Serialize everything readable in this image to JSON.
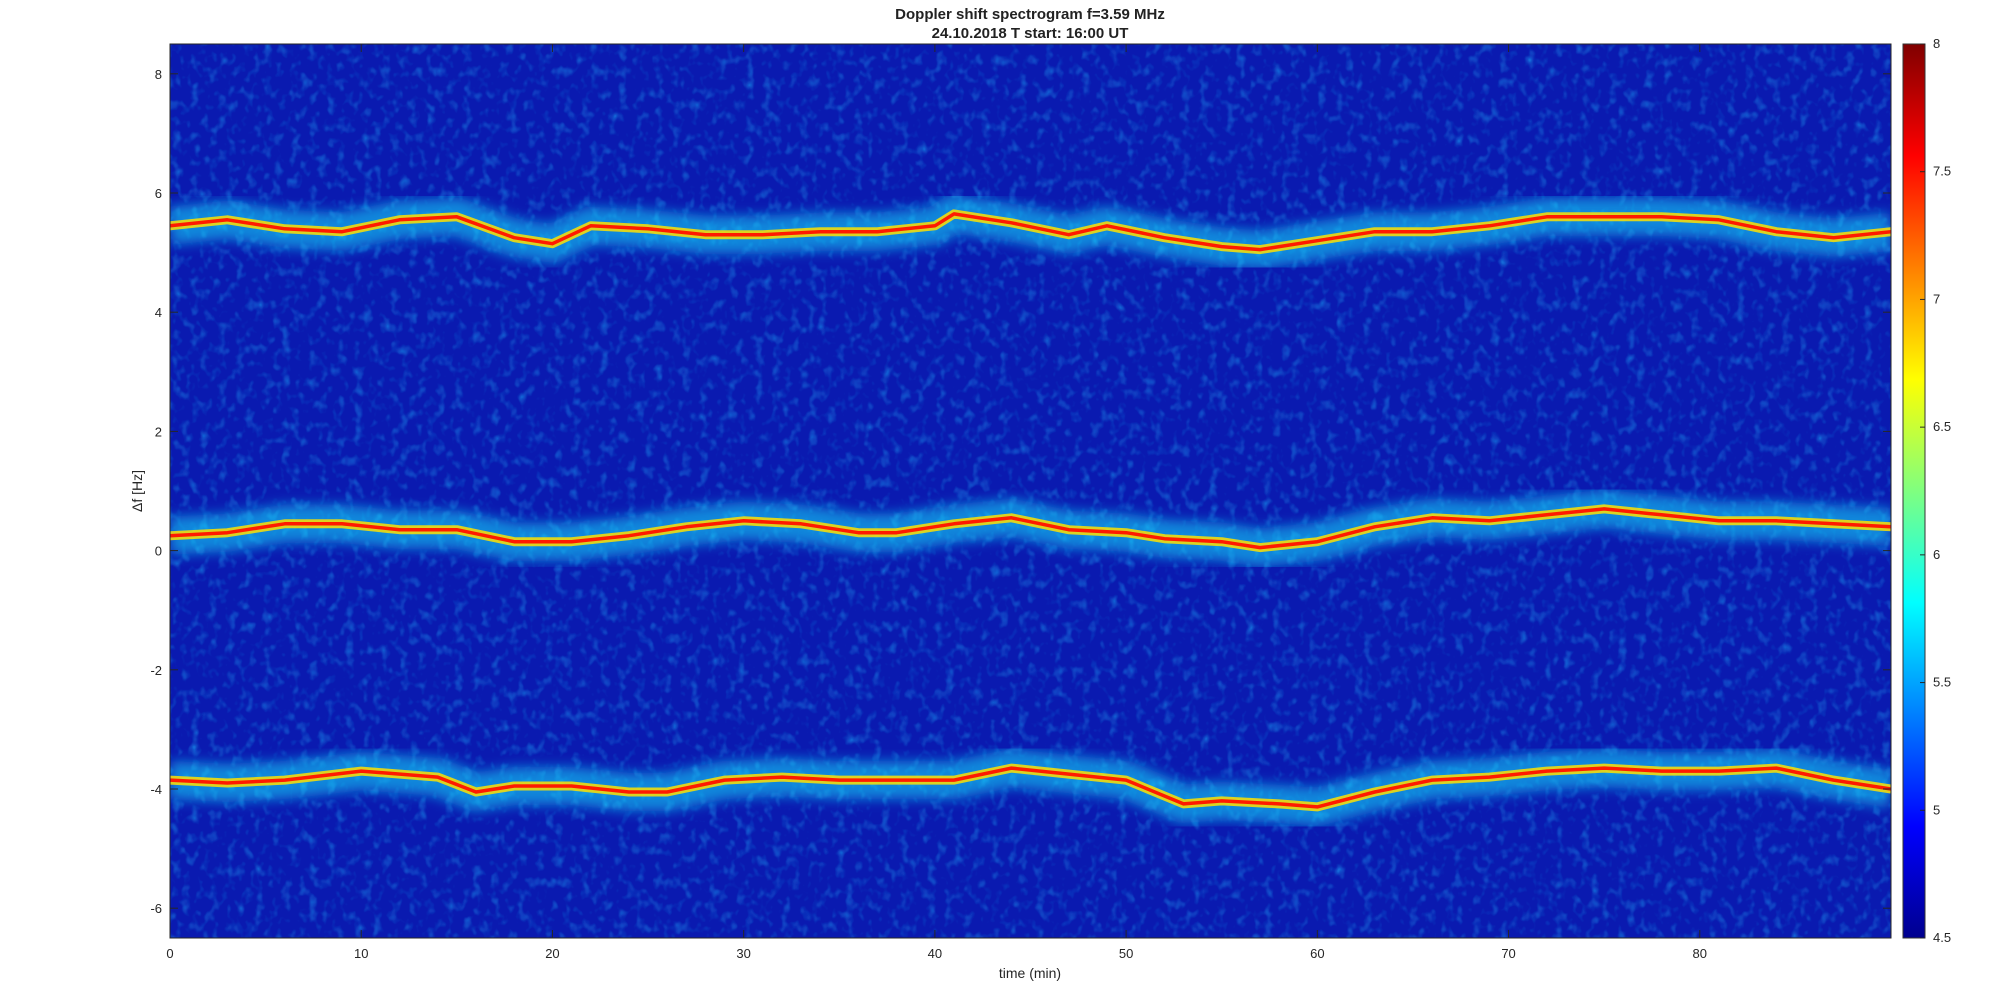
{
  "chart_data": {
    "type": "heatmap",
    "title": "Doppler shift spectrogram f=3.59 MHz",
    "subtitle": "24.10.2018   T start: 16:00 UT",
    "xlabel": "time (min)",
    "ylabel": "Δf [Hz]",
    "xlim": [
      0,
      90
    ],
    "ylim": [
      -6.5,
      8.5
    ],
    "xticks": [
      0,
      10,
      20,
      30,
      40,
      50,
      60,
      70,
      80
    ],
    "yticks": [
      -6,
      -4,
      -2,
      0,
      2,
      4,
      6,
      8
    ],
    "colorbar": {
      "colormap": "jet",
      "range": [
        4.5,
        8
      ],
      "ticks": [
        4.5,
        5,
        5.5,
        6,
        6.5,
        7,
        7.5,
        8
      ]
    },
    "grid": false,
    "traces": [
      {
        "x": [
          0,
          3,
          6,
          9,
          12,
          15,
          18,
          20,
          22,
          25,
          28,
          31,
          34,
          37,
          40,
          41,
          44,
          47,
          49,
          52,
          55,
          57,
          60,
          63,
          66,
          69,
          72,
          75,
          78,
          81,
          84,
          87,
          90
        ],
        "y": [
          5.45,
          5.55,
          5.4,
          5.35,
          5.55,
          5.6,
          5.25,
          5.15,
          5.45,
          5.4,
          5.3,
          5.3,
          5.35,
          5.35,
          5.45,
          5.65,
          5.5,
          5.3,
          5.45,
          5.25,
          5.1,
          5.05,
          5.2,
          5.35,
          5.35,
          5.45,
          5.6,
          5.6,
          5.6,
          5.55,
          5.35,
          5.25,
          5.35
        ]
      },
      {
        "x": [
          0,
          3,
          6,
          9,
          12,
          15,
          18,
          21,
          24,
          27,
          30,
          33,
          36,
          38,
          41,
          44,
          47,
          50,
          52,
          55,
          57,
          60,
          63,
          66,
          69,
          72,
          75,
          78,
          81,
          84,
          87,
          90
        ],
        "y": [
          0.25,
          0.3,
          0.45,
          0.45,
          0.35,
          0.35,
          0.15,
          0.15,
          0.25,
          0.4,
          0.5,
          0.45,
          0.3,
          0.3,
          0.45,
          0.55,
          0.35,
          0.3,
          0.2,
          0.15,
          0.05,
          0.15,
          0.4,
          0.55,
          0.5,
          0.6,
          0.7,
          0.6,
          0.5,
          0.5,
          0.45,
          0.4
        ]
      },
      {
        "x": [
          0,
          3,
          6,
          10,
          14,
          16,
          18,
          21,
          24,
          26,
          29,
          32,
          35,
          38,
          41,
          44,
          47,
          50,
          53,
          55,
          58,
          60,
          63,
          66,
          69,
          72,
          75,
          78,
          81,
          84,
          87,
          90
        ],
        "y": [
          -3.85,
          -3.9,
          -3.85,
          -3.7,
          -3.8,
          -4.05,
          -3.95,
          -3.95,
          -4.05,
          -4.05,
          -3.85,
          -3.8,
          -3.85,
          -3.85,
          -3.85,
          -3.65,
          -3.75,
          -3.85,
          -4.25,
          -4.2,
          -4.25,
          -4.3,
          -4.05,
          -3.85,
          -3.8,
          -3.7,
          -3.65,
          -3.7,
          -3.7,
          -3.65,
          -3.85,
          -4.0
        ]
      }
    ]
  }
}
